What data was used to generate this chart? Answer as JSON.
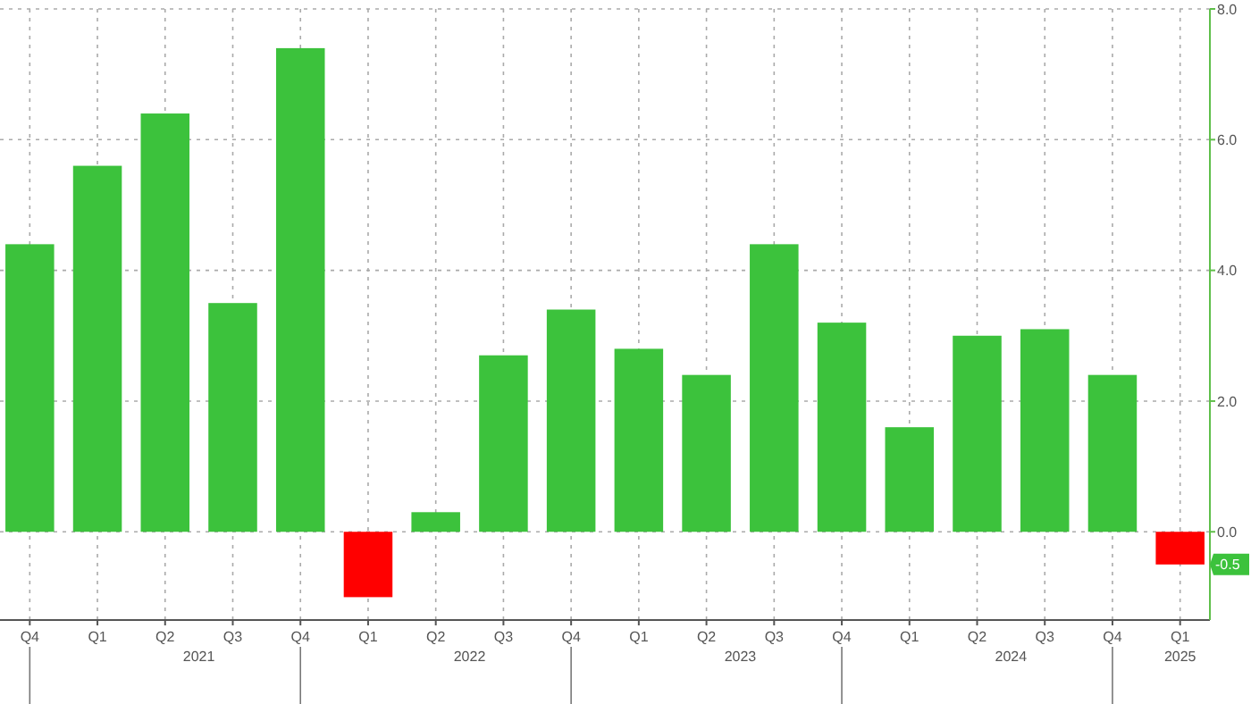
{
  "chart_data": {
    "type": "bar",
    "categories": [
      "Q4",
      "Q1",
      "Q2",
      "Q3",
      "Q4",
      "Q1",
      "Q2",
      "Q3",
      "Q4",
      "Q1",
      "Q2",
      "Q3",
      "Q4",
      "Q1",
      "Q2",
      "Q3",
      "Q4",
      "Q1"
    ],
    "values": [
      4.4,
      5.6,
      6.4,
      3.5,
      7.4,
      -1.0,
      0.3,
      2.7,
      3.4,
      2.8,
      2.4,
      4.4,
      3.2,
      1.6,
      3.0,
      3.1,
      2.4,
      -0.5
    ],
    "colors": [
      "#3cc23c",
      "#3cc23c",
      "#3cc23c",
      "#3cc23c",
      "#3cc23c",
      "#ff0000",
      "#3cc23c",
      "#3cc23c",
      "#3cc23c",
      "#3cc23c",
      "#3cc23c",
      "#3cc23c",
      "#3cc23c",
      "#3cc23c",
      "#3cc23c",
      "#3cc23c",
      "#3cc23c",
      "#ff0000"
    ],
    "ylim": [
      -1.35,
      8.0
    ],
    "yticks": [
      {
        "value": 0,
        "label": "0.0"
      },
      {
        "value": 2,
        "label": "2.0"
      },
      {
        "value": 4,
        "label": "4.0"
      },
      {
        "value": 6,
        "label": "6.0"
      },
      {
        "value": 8,
        "label": "8.0"
      }
    ],
    "grid": true,
    "annotations": [
      "2021",
      "2022",
      "2023",
      "2024",
      "2025",
      {
        "text": "-0.5",
        "y": -0.5
      }
    ]
  }
}
